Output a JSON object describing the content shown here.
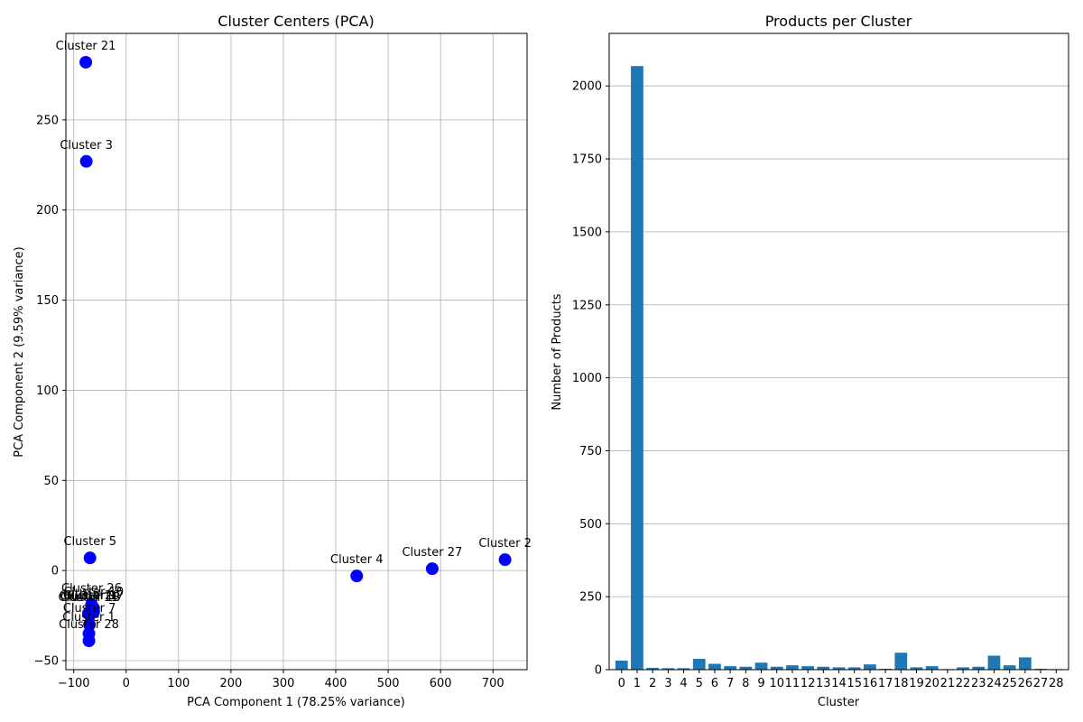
{
  "chart_data": [
    {
      "type": "scatter",
      "title": "Cluster Centers (PCA)",
      "xlabel": "PCA Component 1 (78.25% variance)",
      "ylabel": "PCA Component 2 (9.59% variance)",
      "xlim": [
        -115,
        765
      ],
      "ylim": [
        -55,
        298
      ],
      "xticks": [
        -100,
        0,
        100,
        200,
        300,
        400,
        500,
        600,
        700
      ],
      "yticks": [
        -50,
        0,
        50,
        100,
        150,
        200,
        250
      ],
      "grid": true,
      "marker_color": "#0000ff",
      "points": [
        {
          "label": "Cluster 21",
          "x": -77,
          "y": 282
        },
        {
          "label": "Cluster 3",
          "x": -76,
          "y": 227
        },
        {
          "label": "Cluster 5",
          "x": -69,
          "y": 7
        },
        {
          "label": "Cluster 4",
          "x": 440,
          "y": -3
        },
        {
          "label": "Cluster 27",
          "x": 584,
          "y": 1
        },
        {
          "label": "Cluster 2",
          "x": 723,
          "y": 6
        },
        {
          "label": "Cluster 26",
          "x": -66,
          "y": -19
        },
        {
          "label": "Cluster 9",
          "x": -70,
          "y": -23
        },
        {
          "label": "Cluster 17",
          "x": -62,
          "y": -23
        },
        {
          "label": "Cluster 20",
          "x": -70,
          "y": -23
        },
        {
          "label": "Cluster 11",
          "x": -72,
          "y": -24
        },
        {
          "label": "Cluster 13",
          "x": -68,
          "y": -24
        },
        {
          "label": "Cluster 10",
          "x": -62,
          "y": -21
        },
        {
          "label": "Cluster 7",
          "x": -70,
          "y": -30
        },
        {
          "label": "Cluster 28",
          "x": -71,
          "y": -39
        },
        {
          "label": "Cluster 1",
          "x": -71,
          "y": -35
        }
      ]
    },
    {
      "type": "bar",
      "title": "Products per Cluster",
      "xlabel": "Cluster",
      "ylabel": "Number of Products",
      "ylim": [
        0,
        2180
      ],
      "yticks": [
        0,
        250,
        500,
        750,
        1000,
        1250,
        1500,
        1750,
        2000
      ],
      "grid": "y",
      "bar_color": "#1f77b4",
      "categories": [
        "0",
        "1",
        "2",
        "3",
        "4",
        "5",
        "6",
        "7",
        "8",
        "9",
        "10",
        "11",
        "12",
        "13",
        "14",
        "15",
        "16",
        "17",
        "18",
        "19",
        "20",
        "21",
        "22",
        "23",
        "24",
        "25",
        "26",
        "27",
        "28"
      ],
      "values": [
        31,
        2068,
        6,
        5,
        5,
        37,
        20,
        12,
        10,
        24,
        10,
        15,
        12,
        10,
        8,
        8,
        18,
        3,
        58,
        8,
        12,
        2,
        8,
        10,
        48,
        15,
        42,
        3,
        2
      ]
    }
  ]
}
